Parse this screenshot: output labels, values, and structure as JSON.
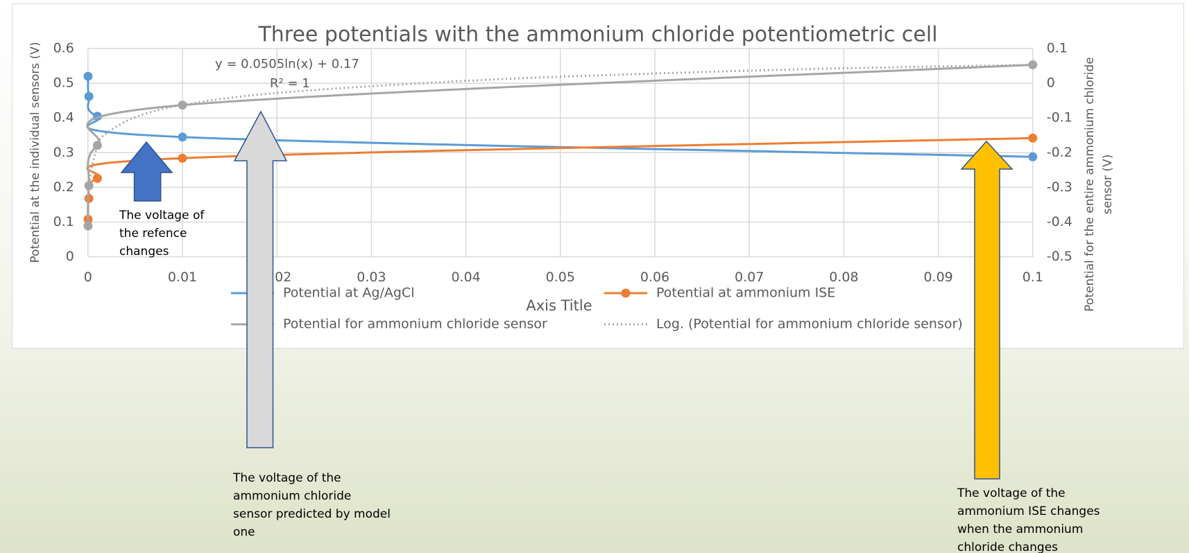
{
  "chart_data": {
    "type": "line",
    "title": "Three potentials with the ammonium chloride potentiometric cell",
    "xlabel": "Axis Title",
    "ylabel": "Potential at the individual sensors (V)",
    "y2label": [
      "Potential for the entire ammonium chloride",
      "sensor (V)"
    ],
    "xlim": [
      0,
      0.1
    ],
    "xticks": [
      0,
      0.01,
      0.02,
      0.03,
      0.04,
      0.05,
      0.06,
      0.07,
      0.08,
      0.09,
      0.1
    ],
    "ylim": [
      0,
      0.6
    ],
    "yticks": [
      0,
      0.1,
      0.2,
      0.3,
      0.4,
      0.5,
      0.6
    ],
    "y2lim": [
      -0.5,
      0.1
    ],
    "y2ticks": [
      -0.5,
      -0.4,
      -0.3,
      -0.2,
      -0.1,
      0,
      0.1
    ],
    "grid": true,
    "legend": "bottom",
    "series": [
      {
        "name": "Potential at Ag/AgCl",
        "color": "#5b9bd5",
        "markers": true,
        "smooth": true,
        "x": [
          1e-05,
          0.0001,
          0.001,
          0.01,
          0.1
        ],
        "values": [
          0.52,
          0.462,
          0.405,
          0.345,
          0.288
        ]
      },
      {
        "name": "Potential at ammonium ISE",
        "color": "#ed7d31",
        "markers": true,
        "smooth": true,
        "x": [
          1e-05,
          0.0001,
          0.001,
          0.01,
          0.1
        ],
        "values": [
          0.108,
          0.168,
          0.226,
          0.284,
          0.342
        ]
      },
      {
        "name": "Potential for ammonium chloride sensor",
        "color": "#a5a5a5",
        "markers": true,
        "smooth": true,
        "axis": "y2",
        "x": [
          1e-05,
          0.0001,
          0.001,
          0.01,
          0.1
        ],
        "values": [
          -0.411,
          -0.295,
          -0.179,
          -0.063,
          0.053
        ]
      },
      {
        "name": "Log. (Potential for ammonium chloride sensor)",
        "color": "#a5a5a5",
        "markers": false,
        "smooth": true,
        "dashed": true,
        "axis": "y2",
        "x": [
          1e-05,
          0.0001,
          0.001,
          0.002,
          0.005,
          0.01,
          0.02,
          0.04,
          0.06,
          0.08,
          0.1
        ],
        "values": [
          -0.411,
          -0.295,
          -0.179,
          -0.144,
          -0.098,
          -0.063,
          -0.028,
          0.007,
          0.028,
          0.043,
          0.053
        ]
      }
    ],
    "annotations": [
      {
        "lines": [
          "y = 0.0505ln(x) + 0.17"
        ]
      },
      {
        "lines": [
          "R² = 1"
        ]
      },
      {
        "lines": [
          "The voltage of",
          "the refence",
          "changes"
        ]
      },
      {
        "lines": [
          "The voltage of the",
          "ammonium chloride",
          "sensor predicted by model",
          "one"
        ]
      },
      {
        "lines": [
          "The voltage of the",
          "ammonium ISE changes",
          "when the ammonium",
          "chloride changes"
        ]
      }
    ]
  }
}
